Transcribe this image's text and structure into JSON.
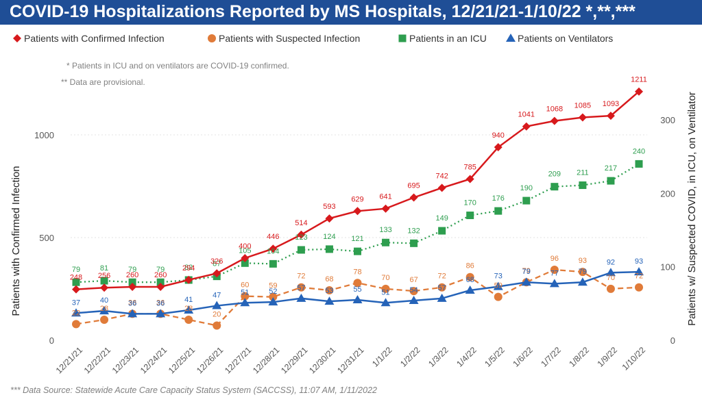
{
  "title": "COVID-19 Hospitalizations Reported by MS Hospitals, 12/21/21-1/10/22 *,**,***",
  "notes": [
    "* Patients in ICU and on ventilators are COVID-19 confirmed.",
    "** Data are provisional."
  ],
  "source": "*** Data Source: Statewide Acute Care Capacity Status System (SACCSS), 11:07 AM, 1/11/2022",
  "chart_data": {
    "type": "line",
    "categories": [
      "12/21/21",
      "12/22/21",
      "12/23/21",
      "12/24/21",
      "12/25/21",
      "12/26/21",
      "12/27/21",
      "12/28/21",
      "12/29/21",
      "12/30/21",
      "12/31/21",
      "1/1/22",
      "1/2/22",
      "1/3/22",
      "1/4/22",
      "1/5/22",
      "1/6/22",
      "1/7/22",
      "1/8/22",
      "1/9/22",
      "1/10/22"
    ],
    "left_axis": {
      "label": "Patients with Confirmed Infection",
      "ticks": [
        0,
        500,
        1000
      ],
      "range": [
        0,
        1250
      ]
    },
    "right_axis": {
      "label": "Patients w/ Suspected COVID, in ICU, on Ventilator",
      "ticks": [
        0,
        100,
        200,
        300
      ],
      "range": [
        0,
        342
      ]
    },
    "legend_position": "top",
    "series": [
      {
        "name": "Patients with Confirmed Infection",
        "axis": "left",
        "color": "#d7191c",
        "marker": "diamond",
        "line": "solid",
        "values": [
          248,
          256,
          260,
          260,
          294,
          326,
          400,
          446,
          514,
          593,
          629,
          641,
          695,
          742,
          785,
          940,
          1041,
          1068,
          1085,
          1093,
          1211
        ]
      },
      {
        "name": "Patients with Suspected Infection",
        "axis": "right",
        "color": "#e07b39",
        "marker": "circle",
        "line": "dashed",
        "values": [
          22,
          28,
          36,
          36,
          28,
          20,
          60,
          59,
          72,
          68,
          78,
          70,
          67,
          72,
          86,
          59,
          79,
          96,
          93,
          70,
          72
        ]
      },
      {
        "name": "Patients in an ICU",
        "axis": "right",
        "color": "#2e9e4f",
        "marker": "square",
        "line": "dotted",
        "values": [
          79,
          81,
          79,
          79,
          82,
          87,
          105,
          104,
          123,
          124,
          121,
          133,
          132,
          149,
          170,
          176,
          190,
          209,
          211,
          217,
          240
        ]
      },
      {
        "name": "Patients on Ventilators",
        "axis": "right",
        "color": "#2563b8",
        "marker": "triangle",
        "line": "solid",
        "values": [
          37,
          40,
          36,
          36,
          41,
          47,
          51,
          52,
          57,
          53,
          55,
          51,
          54,
          57,
          68,
          73,
          79,
          77,
          79,
          92,
          93
        ]
      }
    ]
  }
}
